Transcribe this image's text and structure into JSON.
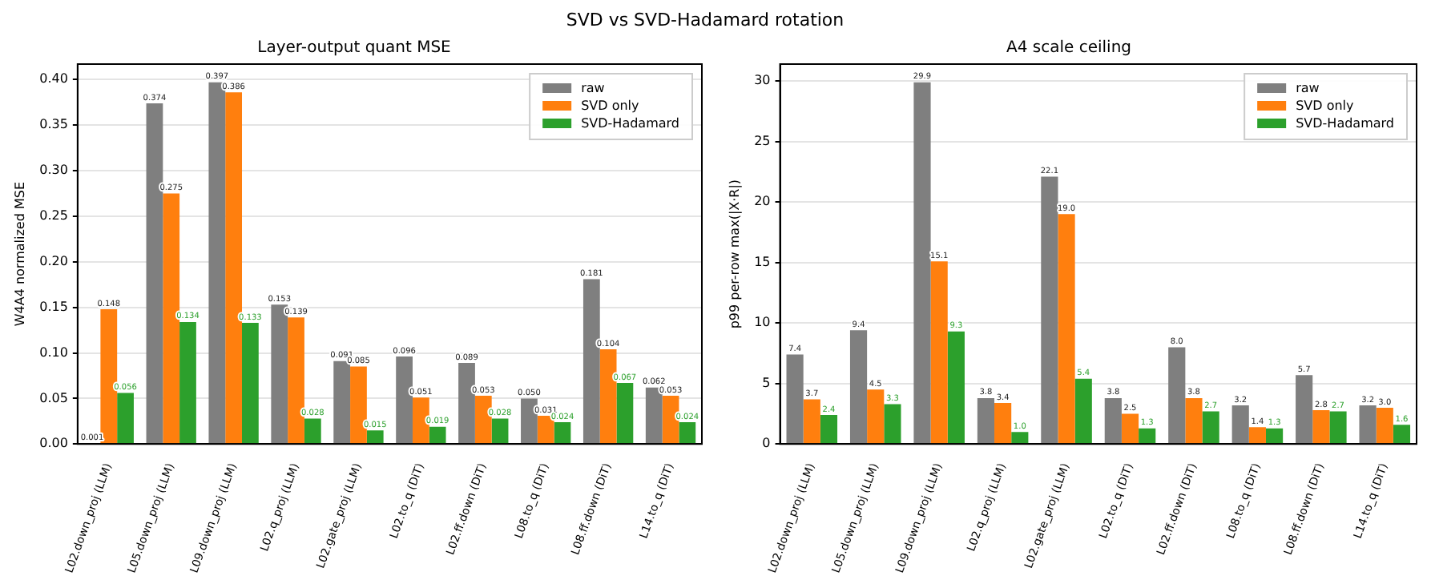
{
  "chart_data": [
    {
      "type": "other",
      "title": "SVD vs SVD-Hadamard rotation"
    },
    {
      "type": "bar",
      "title": "Layer-output quant MSE",
      "ylabel": "W4A4 normalized MSE",
      "categories": [
        "L02.down_proj (LLM)",
        "L05.down_proj (LLM)",
        "L09.down_proj (LLM)",
        "L02.q_proj (LLM)",
        "L02.gate_proj (LLM)",
        "L02.to_q (DiT)",
        "L02.ff.down (DiT)",
        "L08.to_q (DiT)",
        "L08.ff.down (DiT)",
        "L14.to_q (DiT)"
      ],
      "series": [
        {
          "name": "raw",
          "color": "#7f7f7f",
          "values": [
            0.001,
            0.374,
            0.397,
            0.153,
            0.091,
            0.096,
            0.089,
            0.05,
            0.181,
            0.062
          ],
          "value_labels": [
            "0.001",
            "0.374",
            "0.397",
            "0.153",
            "0.091",
            "0.096",
            "0.089",
            "0.050",
            "0.181",
            "0.062"
          ]
        },
        {
          "name": "SVD only",
          "color": "#ff7f0e",
          "values": [
            0.148,
            0.275,
            0.386,
            0.139,
            0.085,
            0.051,
            0.053,
            0.031,
            0.104,
            0.053
          ],
          "value_labels": [
            "0.148",
            "0.275",
            "0.386",
            "0.139",
            "0.085",
            "0.051",
            "0.053",
            "0.031",
            "0.104",
            "0.053"
          ]
        },
        {
          "name": "SVD-Hadamard",
          "color": "#2ca02c",
          "values": [
            0.056,
            0.134,
            0.133,
            0.028,
            0.015,
            0.019,
            0.028,
            0.024,
            0.067,
            0.024
          ],
          "value_labels": [
            "0.056",
            "0.134",
            "0.133",
            "0.028",
            "0.015",
            "0.019",
            "0.028",
            "0.024",
            "0.067",
            "0.024"
          ]
        }
      ],
      "ylim": [
        0,
        0.417
      ],
      "yticks": [
        {
          "value": 0,
          "label": "0.00"
        },
        {
          "value": 0.05,
          "label": "0.05"
        },
        {
          "value": 0.1,
          "label": "0.10"
        },
        {
          "value": 0.15,
          "label": "0.15"
        },
        {
          "value": 0.2,
          "label": "0.20"
        },
        {
          "value": 0.25,
          "label": "0.25"
        },
        {
          "value": 0.3,
          "label": "0.30"
        },
        {
          "value": 0.35,
          "label": "0.35"
        },
        {
          "value": 0.4,
          "label": "0.40"
        }
      ],
      "grid": "y",
      "legend": "top right"
    },
    {
      "type": "bar",
      "title": "A4 scale ceiling",
      "ylabel": "p99 per-row max(|X·R|)",
      "categories": [
        "L02.down_proj (LLM)",
        "L05.down_proj (LLM)",
        "L09.down_proj (LLM)",
        "L02.q_proj (LLM)",
        "L02.gate_proj (LLM)",
        "L02.to_q (DiT)",
        "L02.ff.down (DiT)",
        "L08.to_q (DiT)",
        "L08.ff.down (DiT)",
        "L14.to_q (DiT)"
      ],
      "series": [
        {
          "name": "raw",
          "color": "#7f7f7f",
          "values": [
            7.4,
            9.4,
            29.9,
            3.8,
            22.1,
            3.8,
            8.0,
            3.2,
            5.7,
            3.2
          ],
          "value_labels": [
            "7.4",
            "9.4",
            "29.9",
            "3.8",
            "22.1",
            "3.8",
            "8.0",
            "3.2",
            "5.7",
            "3.2"
          ]
        },
        {
          "name": "SVD only",
          "color": "#ff7f0e",
          "values": [
            3.7,
            4.5,
            15.1,
            3.4,
            19.0,
            2.5,
            3.8,
            1.4,
            2.8,
            3.0
          ],
          "value_labels": [
            "3.7",
            "4.5",
            "15.1",
            "3.4",
            "19.0",
            "2.5",
            "3.8",
            "1.4",
            "2.8",
            "3.0"
          ]
        },
        {
          "name": "SVD-Hadamard",
          "color": "#2ca02c",
          "values": [
            2.4,
            3.3,
            9.3,
            1.0,
            5.4,
            1.3,
            2.7,
            1.3,
            2.7,
            1.6
          ],
          "value_labels": [
            "2.4",
            "3.3",
            "9.3",
            "1.0",
            "5.4",
            "1.3",
            "2.7",
            "1.3",
            "2.7",
            "1.6"
          ]
        }
      ],
      "ylim": [
        0,
        31.4
      ],
      "yticks": [
        0,
        5,
        10,
        15,
        20,
        25,
        30
      ],
      "grid": "y",
      "legend": "top right"
    }
  ]
}
